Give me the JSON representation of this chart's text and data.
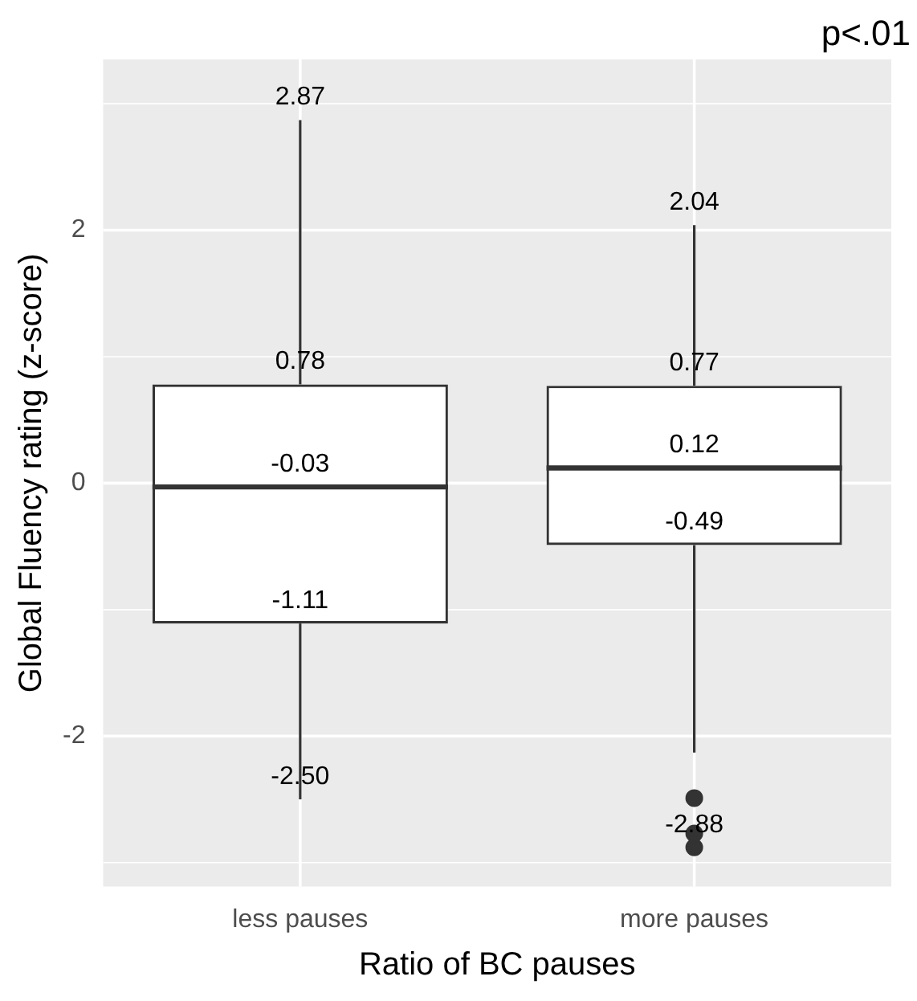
{
  "chart_data": {
    "type": "box",
    "xlabel": "Ratio of BC pauses",
    "ylabel": "Global Fluency rating (z-score)",
    "categories": [
      "less pauses",
      "more pauses"
    ],
    "boxes": [
      {
        "low": -2.5,
        "q1": -1.11,
        "median": -0.03,
        "q3": 0.78,
        "high": 2.87
      },
      {
        "low": -2.13,
        "q1": -0.49,
        "median": 0.12,
        "q3": 0.77,
        "high": 2.04,
        "outliers": [
          -2.49,
          -2.77,
          -2.88
        ]
      }
    ],
    "ylim": [
      -3.19,
      3.35
    ],
    "yticks": [
      -2,
      0,
      2
    ],
    "grid": true,
    "legend": false,
    "annotations": [
      "p<.01",
      {
        "text": "2.87",
        "x": "less pauses",
        "y": 2.87
      },
      {
        "text": "0.78",
        "x": "less pauses",
        "y": 0.78
      },
      {
        "text": "-0.03",
        "x": "less pauses",
        "y": -0.03
      },
      {
        "text": "-1.11",
        "x": "less pauses",
        "y": -1.11
      },
      {
        "text": "-2.50",
        "x": "less pauses",
        "y": -2.5
      },
      {
        "text": "2.04",
        "x": "more pauses",
        "y": 2.04
      },
      {
        "text": "0.77",
        "x": "more pauses",
        "y": 0.77
      },
      {
        "text": "0.12",
        "x": "more pauses",
        "y": 0.12
      },
      {
        "text": "-0.49",
        "x": "more pauses",
        "y": -0.49
      },
      "-2.88"
    ]
  }
}
